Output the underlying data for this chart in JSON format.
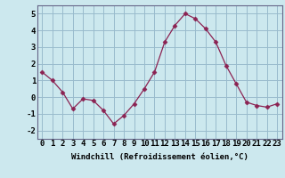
{
  "x": [
    0,
    1,
    2,
    3,
    4,
    5,
    6,
    7,
    8,
    9,
    10,
    11,
    12,
    13,
    14,
    15,
    16,
    17,
    18,
    19,
    20,
    21,
    22,
    23
  ],
  "y": [
    1.5,
    1.0,
    0.3,
    -0.7,
    -0.1,
    -0.2,
    -0.8,
    -1.6,
    -1.1,
    -0.4,
    0.5,
    1.5,
    3.3,
    4.3,
    5.0,
    4.7,
    4.1,
    3.3,
    1.9,
    0.8,
    -0.3,
    -0.5,
    -0.6,
    -0.4
  ],
  "line_color": "#8b2252",
  "marker": "D",
  "marker_size": 2.5,
  "bg_color": "#cce8ee",
  "grid_color": "#99bbcc",
  "xlabel": "Windchill (Refroidissement éolien,°C)",
  "xlim": [
    -0.5,
    23.5
  ],
  "ylim": [
    -2.5,
    5.5
  ],
  "yticks": [
    -2,
    -1,
    0,
    1,
    2,
    3,
    4,
    5
  ],
  "xticks": [
    0,
    1,
    2,
    3,
    4,
    5,
    6,
    7,
    8,
    9,
    10,
    11,
    12,
    13,
    14,
    15,
    16,
    17,
    18,
    19,
    20,
    21,
    22,
    23
  ],
  "xtick_labels": [
    "0",
    "1",
    "2",
    "3",
    "4",
    "5",
    "6",
    "7",
    "8",
    "9",
    "10",
    "11",
    "12",
    "13",
    "14",
    "15",
    "16",
    "17",
    "18",
    "19",
    "20",
    "21",
    "22",
    "23"
  ],
  "xlabel_fontsize": 6.5,
  "tick_fontsize": 6.5
}
